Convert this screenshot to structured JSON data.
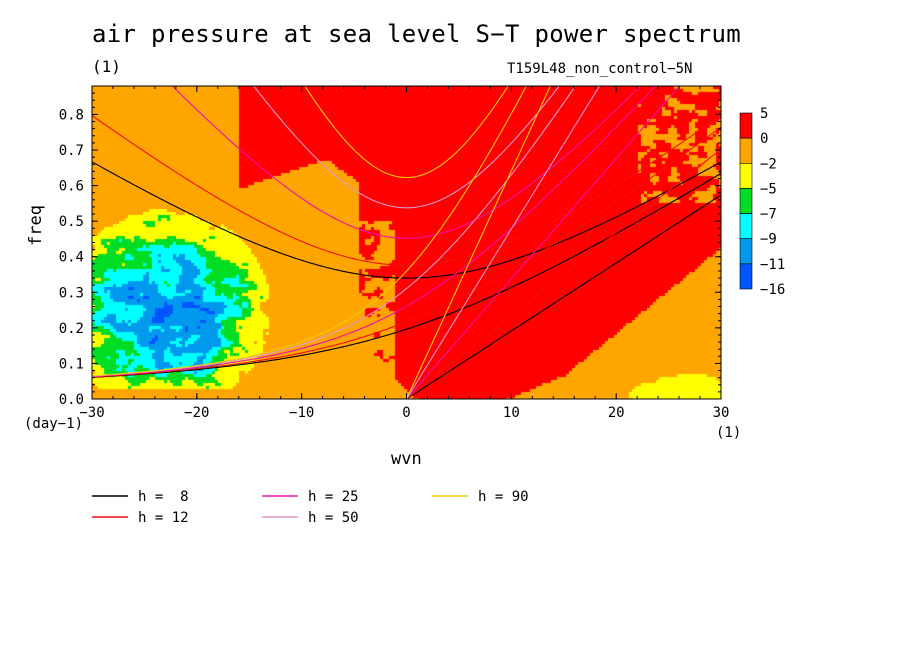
{
  "title": "air pressure at sea level S−T power spectrum",
  "title_unit": "(1)",
  "run_label": "T159L48_non_control−5N",
  "chart_data": {
    "type": "heatmap",
    "xlabel": "wvn",
    "ylabel": "freq",
    "x_unit": "(1)",
    "y_unit": "(day−1)",
    "xlim": [
      -30,
      30
    ],
    "ylim": [
      0,
      0.88
    ],
    "x_ticks": [
      -30,
      -20,
      -10,
      0,
      10,
      20,
      30
    ],
    "x_tick_labels": [
      "−30",
      "−20",
      "−10",
      "0",
      "10",
      "20",
      "30"
    ],
    "y_ticks": [
      0.0,
      0.1,
      0.2,
      0.3,
      0.4,
      0.5,
      0.6,
      0.7,
      0.8
    ],
    "y_tick_labels": [
      "0.0",
      "0.1",
      "0.2",
      "0.3",
      "0.4",
      "0.5",
      "0.6",
      "0.7",
      "0.8"
    ],
    "colorbar": {
      "levels": [
        "5",
        "0",
        "−2",
        "−5",
        "−7",
        "−9",
        "−11",
        "−16"
      ],
      "colors": [
        "#ff0000",
        "#ffa500",
        "#ffff00",
        "#00dd22",
        "#00ffff",
        "#0099ee",
        "#0055ff"
      ]
    },
    "dispersion_curves": [
      {
        "name": "h =  8",
        "h": 8,
        "color": "#000000"
      },
      {
        "name": "h = 12",
        "h": 12,
        "color": "#ee1111"
      },
      {
        "name": "h = 25",
        "h": 25,
        "color": "#ee10aa"
      },
      {
        "name": "h = 50",
        "h": 50,
        "color": "#dd99cc"
      },
      {
        "name": "h = 90",
        "h": 90,
        "color": "#eecc00"
      }
    ],
    "regions": [
      {
        "label": "0",
        "description": "red band (0 to 5) along the Kelvin-wave branch and high-frequency gravity-wave region"
      },
      {
        "label": "−7 to −9",
        "description": "green/cyan low-power area at wvn −30 to −17, freq 0.05 to 0.48"
      },
      {
        "label": "−2 to −5",
        "description": "yellow patch at wvn 22 to 30, freq 0 to 0.08"
      }
    ]
  }
}
